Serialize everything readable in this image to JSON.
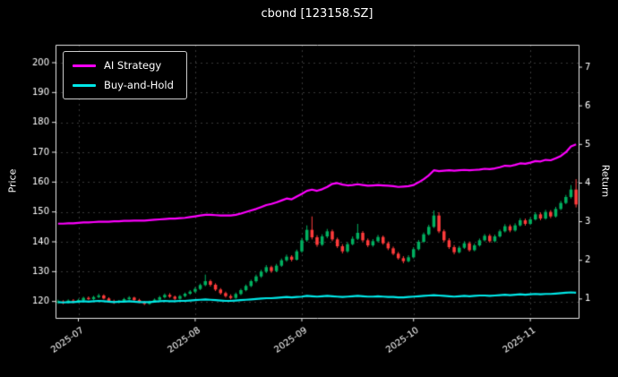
{
  "chart": {
    "title": "cbond [123158.SZ]",
    "left_axis_label": "Price",
    "right_axis_label": "Return",
    "legend": [
      {
        "label": "AI Strategy",
        "color": "#ff00ff"
      },
      {
        "label": "Buy-and-Hold",
        "color": "#00e8e8"
      }
    ]
  },
  "chart_data": {
    "type": "candlestick",
    "title": "cbond [123158.SZ]",
    "xlabel": "",
    "ylabel_left": "Price",
    "ylabel_right": "Return",
    "legend_position": "upper-left",
    "grid": true,
    "x_tick_labels": [
      "2025-07",
      "2025-08",
      "2025-09",
      "2025-10",
      "2025-11"
    ],
    "x_tick_indices": [
      4,
      27,
      48,
      70,
      93
    ],
    "left_ticks": [
      120,
      130,
      140,
      150,
      160,
      170,
      180,
      190,
      200
    ],
    "right_ticks": [
      1,
      2,
      3,
      4,
      5,
      6,
      7
    ],
    "ylim_price": [
      114.5,
      206
    ],
    "ylim_return": [
      0.51,
      7.58
    ],
    "colors": {
      "background": "#000000",
      "text": "#ffffff",
      "frame": "#e8e8e8",
      "grid": "rgba(255,255,255,0.22)",
      "up": "#00b060",
      "down": "#ff3b3b",
      "ai": "#ff00ff",
      "buy_hold": "#00e8e8"
    },
    "dates": [
      "2025-06-25",
      "2025-06-26",
      "2025-06-27",
      "2025-06-30",
      "2025-07-01",
      "2025-07-02",
      "2025-07-03",
      "2025-07-04",
      "2025-07-07",
      "2025-07-08",
      "2025-07-09",
      "2025-07-10",
      "2025-07-11",
      "2025-07-14",
      "2025-07-15",
      "2025-07-16",
      "2025-07-17",
      "2025-07-18",
      "2025-07-21",
      "2025-07-22",
      "2025-07-23",
      "2025-07-24",
      "2025-07-25",
      "2025-07-28",
      "2025-07-29",
      "2025-07-30",
      "2025-07-31",
      "2025-08-01",
      "2025-08-04",
      "2025-08-05",
      "2025-08-06",
      "2025-08-07",
      "2025-08-08",
      "2025-08-11",
      "2025-08-12",
      "2025-08-13",
      "2025-08-14",
      "2025-08-15",
      "2025-08-18",
      "2025-08-19",
      "2025-08-20",
      "2025-08-21",
      "2025-08-22",
      "2025-08-25",
      "2025-08-26",
      "2025-08-27",
      "2025-08-28",
      "2025-08-29",
      "2025-09-01",
      "2025-09-02",
      "2025-09-03",
      "2025-09-04",
      "2025-09-05",
      "2025-09-08",
      "2025-09-09",
      "2025-09-10",
      "2025-09-11",
      "2025-09-12",
      "2025-09-15",
      "2025-09-16",
      "2025-09-17",
      "2025-09-18",
      "2025-09-19",
      "2025-09-22",
      "2025-09-23",
      "2025-09-24",
      "2025-09-25",
      "2025-09-26",
      "2025-09-29",
      "2025-09-30",
      "2025-10-01",
      "2025-10-02",
      "2025-10-03",
      "2025-10-06",
      "2025-10-07",
      "2025-10-08",
      "2025-10-09",
      "2025-10-10",
      "2025-10-13",
      "2025-10-14",
      "2025-10-15",
      "2025-10-16",
      "2025-10-17",
      "2025-10-20",
      "2025-10-21",
      "2025-10-22",
      "2025-10-23",
      "2025-10-24",
      "2025-10-27",
      "2025-10-28",
      "2025-10-29",
      "2025-10-30",
      "2025-10-31",
      "2025-11-03",
      "2025-11-04",
      "2025-11-05",
      "2025-11-06",
      "2025-11-07",
      "2025-11-10",
      "2025-11-11",
      "2025-11-12",
      "2025-11-13",
      "2025-11-14"
    ],
    "ohlc": [
      [
        119.8,
        120.6,
        119.2,
        120.0
      ],
      [
        120.0,
        120.4,
        119.1,
        119.5
      ],
      [
        119.5,
        120.7,
        119.3,
        120.3
      ],
      [
        120.3,
        120.8,
        119.4,
        119.8
      ],
      [
        119.8,
        120.9,
        119.5,
        120.5
      ],
      [
        120.5,
        121.6,
        120.2,
        121.2
      ],
      [
        121.2,
        121.7,
        120.4,
        120.8
      ],
      [
        120.8,
        121.9,
        120.5,
        121.5
      ],
      [
        121.5,
        122.6,
        121.1,
        122.0
      ],
      [
        122.0,
        122.4,
        120.7,
        121.0
      ],
      [
        121.0,
        121.4,
        119.9,
        120.2
      ],
      [
        120.2,
        120.6,
        119.2,
        119.6
      ],
      [
        119.6,
        120.5,
        119.3,
        120.0
      ],
      [
        120.0,
        121.2,
        119.8,
        120.8
      ],
      [
        120.8,
        121.8,
        120.4,
        121.3
      ],
      [
        121.3,
        121.6,
        120.2,
        120.5
      ],
      [
        120.5,
        120.9,
        119.5,
        119.8
      ],
      [
        119.8,
        120.2,
        118.8,
        119.2
      ],
      [
        119.2,
        120.3,
        118.9,
        119.9
      ],
      [
        119.9,
        121.0,
        119.6,
        120.6
      ],
      [
        120.6,
        121.9,
        120.3,
        121.4
      ],
      [
        121.4,
        122.7,
        121.0,
        122.2
      ],
      [
        122.2,
        122.8,
        121.2,
        121.6
      ],
      [
        121.6,
        122.0,
        120.5,
        120.9
      ],
      [
        120.9,
        122.2,
        120.6,
        121.8
      ],
      [
        121.8,
        123.0,
        121.4,
        122.6
      ],
      [
        122.6,
        123.8,
        122.2,
        123.3
      ],
      [
        123.3,
        124.8,
        122.9,
        124.2
      ],
      [
        124.2,
        126.0,
        123.8,
        125.5
      ],
      [
        125.5,
        129.0,
        125.1,
        126.8
      ],
      [
        126.8,
        127.3,
        125.0,
        125.6
      ],
      [
        125.6,
        126.1,
        123.5,
        124.0
      ],
      [
        124.0,
        124.5,
        122.3,
        122.8
      ],
      [
        122.8,
        123.3,
        121.3,
        121.8
      ],
      [
        121.8,
        122.4,
        120.7,
        121.2
      ],
      [
        121.2,
        123.0,
        120.9,
        122.5
      ],
      [
        122.5,
        124.3,
        122.1,
        123.8
      ],
      [
        123.8,
        125.7,
        123.4,
        125.2
      ],
      [
        125.2,
        127.3,
        124.8,
        126.8
      ],
      [
        126.8,
        129.0,
        126.3,
        128.4
      ],
      [
        128.4,
        130.6,
        127.9,
        130.0
      ],
      [
        130.0,
        132.2,
        129.5,
        131.5
      ],
      [
        131.5,
        132.0,
        129.6,
        130.2
      ],
      [
        130.2,
        132.6,
        129.8,
        132.0
      ],
      [
        132.0,
        134.4,
        131.6,
        133.8
      ],
      [
        133.8,
        135.7,
        133.3,
        135.0
      ],
      [
        135.0,
        135.5,
        133.4,
        134.0
      ],
      [
        134.0,
        137.4,
        133.7,
        136.8
      ],
      [
        136.8,
        141.3,
        136.3,
        140.5
      ],
      [
        140.5,
        145.5,
        140.0,
        144.0
      ],
      [
        144.0,
        148.5,
        140.8,
        141.5
      ],
      [
        141.5,
        142.2,
        138.3,
        139.0
      ],
      [
        139.0,
        142.5,
        138.6,
        141.8
      ],
      [
        141.8,
        144.3,
        141.2,
        143.5
      ],
      [
        143.5,
        144.1,
        140.2,
        140.8
      ],
      [
        140.8,
        141.4,
        137.9,
        138.5
      ],
      [
        138.5,
        139.2,
        136.1,
        136.8
      ],
      [
        136.8,
        139.9,
        136.3,
        139.2
      ],
      [
        139.2,
        141.8,
        138.8,
        141.0
      ],
      [
        141.0,
        146.0,
        140.6,
        143.0
      ],
      [
        143.0,
        143.6,
        140.0,
        140.5
      ],
      [
        140.5,
        141.1,
        138.2,
        138.8
      ],
      [
        138.8,
        140.9,
        138.3,
        140.2
      ],
      [
        140.2,
        142.3,
        139.8,
        141.6
      ],
      [
        141.6,
        142.1,
        139.0,
        139.5
      ],
      [
        139.5,
        140.1,
        137.2,
        137.8
      ],
      [
        137.8,
        138.4,
        135.5,
        136.0
      ],
      [
        136.0,
        136.6,
        134.0,
        134.5
      ],
      [
        134.5,
        135.2,
        132.8,
        133.5
      ],
      [
        133.5,
        135.5,
        133.1,
        134.8
      ],
      [
        134.8,
        138.2,
        134.4,
        137.5
      ],
      [
        137.5,
        140.6,
        137.1,
        140.0
      ],
      [
        140.0,
        143.1,
        139.6,
        142.5
      ],
      [
        142.5,
        145.7,
        142.1,
        145.0
      ],
      [
        145.0,
        150.5,
        144.6,
        148.8
      ],
      [
        148.8,
        149.9,
        142.9,
        143.5
      ],
      [
        143.5,
        144.1,
        139.9,
        140.5
      ],
      [
        140.5,
        141.2,
        137.6,
        138.2
      ],
      [
        138.2,
        138.9,
        135.8,
        136.5
      ],
      [
        136.5,
        138.6,
        136.1,
        138.0
      ],
      [
        138.0,
        140.2,
        137.6,
        139.5
      ],
      [
        139.5,
        140.1,
        136.7,
        137.2
      ],
      [
        137.2,
        139.4,
        136.8,
        138.8
      ],
      [
        138.8,
        141.1,
        138.4,
        140.5
      ],
      [
        140.5,
        142.6,
        140.1,
        142.0
      ],
      [
        142.0,
        142.6,
        139.7,
        140.2
      ],
      [
        140.2,
        142.4,
        139.8,
        141.8
      ],
      [
        141.8,
        144.1,
        141.4,
        143.5
      ],
      [
        143.5,
        145.9,
        143.1,
        145.2
      ],
      [
        145.2,
        145.8,
        143.2,
        143.8
      ],
      [
        143.8,
        146.2,
        143.4,
        145.5
      ],
      [
        145.5,
        147.9,
        145.1,
        147.2
      ],
      [
        147.2,
        147.8,
        145.4,
        146.0
      ],
      [
        146.0,
        148.2,
        145.6,
        147.5
      ],
      [
        147.5,
        149.9,
        147.1,
        149.2
      ],
      [
        149.2,
        149.8,
        147.2,
        147.8
      ],
      [
        147.8,
        150.7,
        147.4,
        150.0
      ],
      [
        150.0,
        150.6,
        147.9,
        148.5
      ],
      [
        148.5,
        151.7,
        148.1,
        151.0
      ],
      [
        151.0,
        153.7,
        150.6,
        153.0
      ],
      [
        153.0,
        155.7,
        152.6,
        155.0
      ],
      [
        155.0,
        159.0,
        154.5,
        157.5
      ],
      [
        157.5,
        161.0,
        151.5,
        152.5
      ]
    ],
    "series": [
      {
        "name": "AI Strategy",
        "axis": "right",
        "color": "#ff00ff",
        "values": [
          2.95,
          2.95,
          2.96,
          2.96,
          2.97,
          2.98,
          2.98,
          2.99,
          3.0,
          3.0,
          3.0,
          3.01,
          3.01,
          3.02,
          3.02,
          3.03,
          3.03,
          3.03,
          3.04,
          3.05,
          3.06,
          3.07,
          3.08,
          3.08,
          3.09,
          3.1,
          3.12,
          3.14,
          3.16,
          3.18,
          3.18,
          3.17,
          3.16,
          3.16,
          3.16,
          3.18,
          3.21,
          3.25,
          3.29,
          3.33,
          3.38,
          3.43,
          3.46,
          3.5,
          3.55,
          3.6,
          3.58,
          3.65,
          3.72,
          3.8,
          3.83,
          3.8,
          3.84,
          3.9,
          3.98,
          4.0,
          3.96,
          3.94,
          3.95,
          3.97,
          3.95,
          3.93,
          3.94,
          3.95,
          3.94,
          3.93,
          3.92,
          3.9,
          3.91,
          3.92,
          3.95,
          4.02,
          4.1,
          4.2,
          4.33,
          4.31,
          4.32,
          4.33,
          4.32,
          4.33,
          4.34,
          4.33,
          4.34,
          4.35,
          4.37,
          4.36,
          4.38,
          4.41,
          4.45,
          4.44,
          4.47,
          4.51,
          4.5,
          4.53,
          4.57,
          4.56,
          4.6,
          4.59,
          4.64,
          4.7,
          4.8,
          4.95,
          5.0
        ]
      },
      {
        "name": "Buy-and-Hold",
        "axis": "right",
        "color": "#00e8e8",
        "values": [
          0.92,
          0.91,
          0.92,
          0.92,
          0.93,
          0.94,
          0.93,
          0.94,
          0.95,
          0.94,
          0.93,
          0.92,
          0.93,
          0.93,
          0.94,
          0.93,
          0.92,
          0.92,
          0.92,
          0.93,
          0.94,
          0.95,
          0.94,
          0.94,
          0.95,
          0.95,
          0.96,
          0.97,
          0.98,
          0.99,
          0.98,
          0.97,
          0.96,
          0.95,
          0.95,
          0.96,
          0.97,
          0.98,
          0.99,
          1.0,
          1.01,
          1.02,
          1.02,
          1.03,
          1.04,
          1.05,
          1.04,
          1.05,
          1.06,
          1.08,
          1.07,
          1.06,
          1.07,
          1.08,
          1.07,
          1.06,
          1.05,
          1.06,
          1.07,
          1.08,
          1.07,
          1.06,
          1.06,
          1.07,
          1.06,
          1.05,
          1.05,
          1.04,
          1.04,
          1.05,
          1.06,
          1.07,
          1.08,
          1.09,
          1.1,
          1.09,
          1.08,
          1.07,
          1.06,
          1.07,
          1.08,
          1.07,
          1.08,
          1.09,
          1.09,
          1.08,
          1.09,
          1.1,
          1.11,
          1.1,
          1.11,
          1.12,
          1.11,
          1.12,
          1.13,
          1.12,
          1.13,
          1.13,
          1.14,
          1.15,
          1.16,
          1.17,
          1.16
        ]
      }
    ]
  }
}
